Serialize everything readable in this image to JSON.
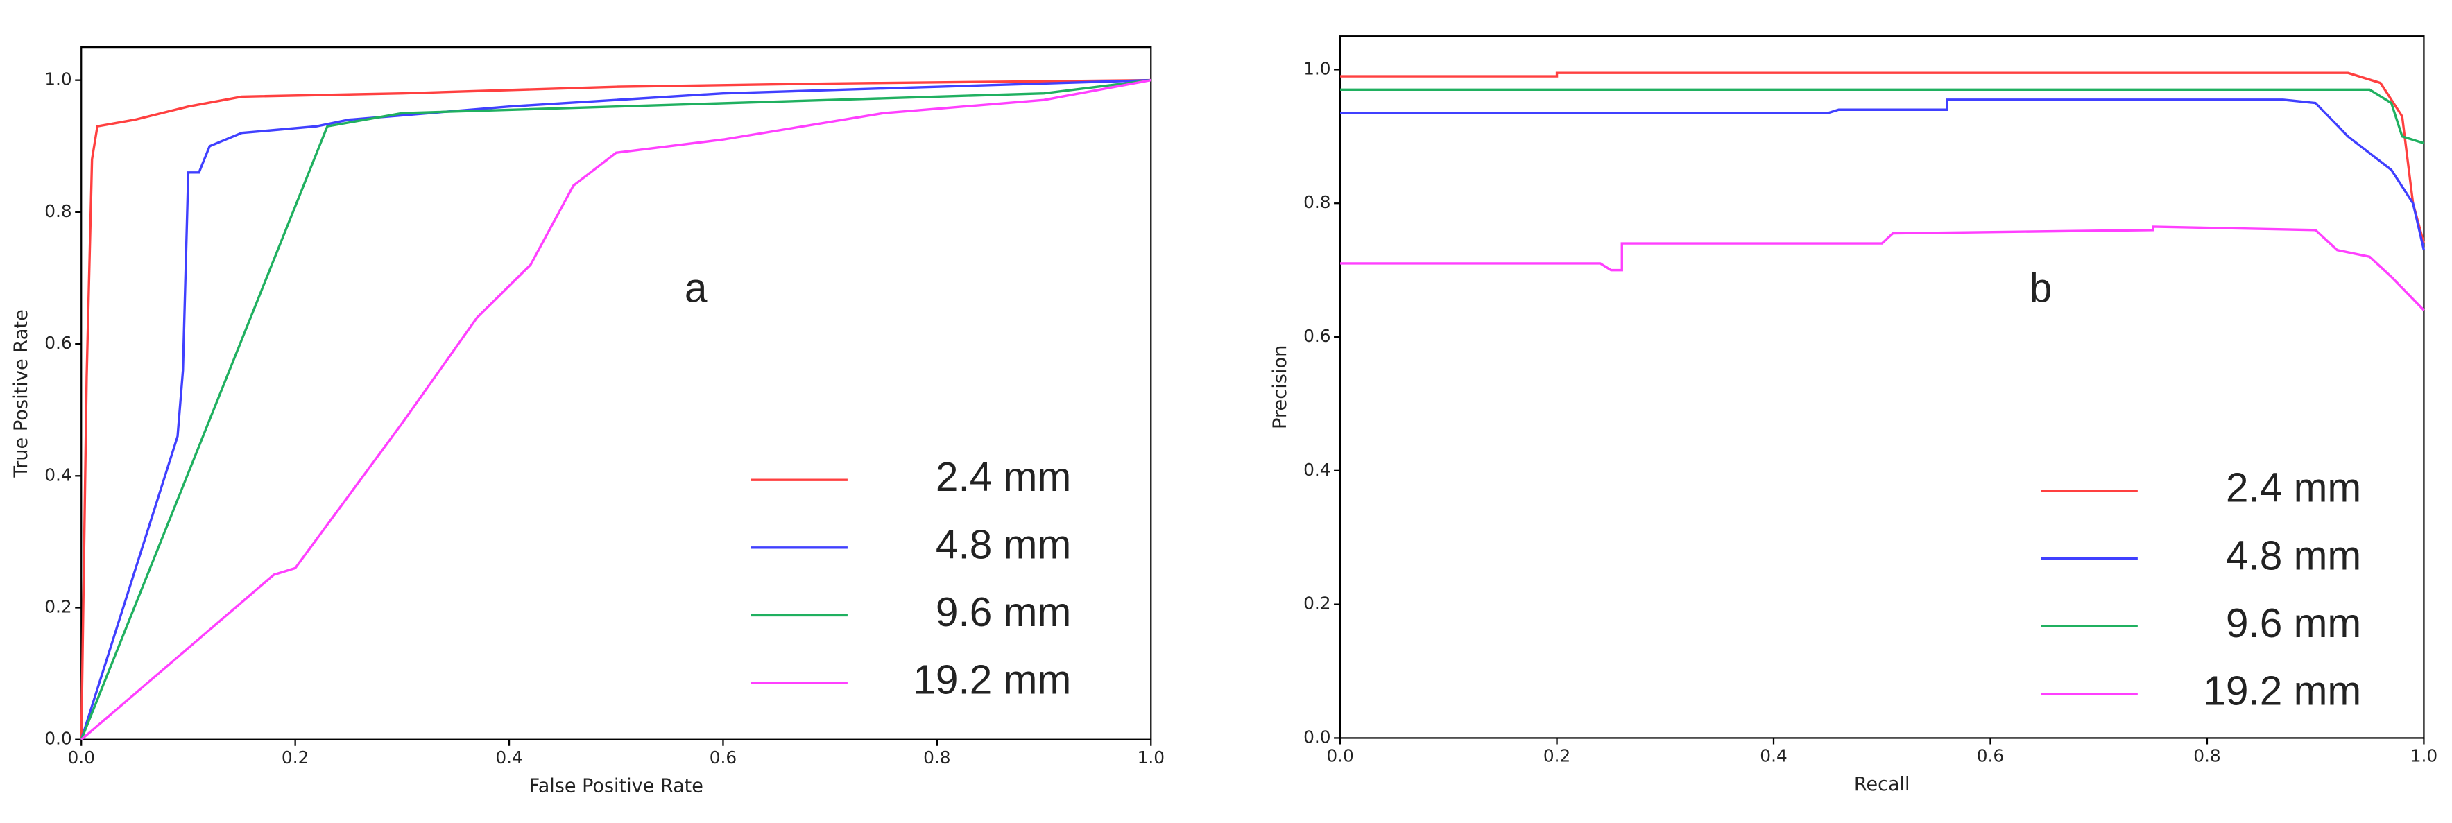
{
  "chart_data": [
    {
      "type": "line",
      "xlabel": "False Positive Rate",
      "ylabel": "True Positive Rate",
      "annotation": "a",
      "xlim": [
        0,
        1
      ],
      "ylim": [
        0,
        1.05
      ],
      "xticks": [
        {
          "value": 0,
          "label": "0.0"
        },
        0.2,
        0.4,
        0.6,
        0.8,
        {
          "value": 1,
          "label": "1.0"
        }
      ],
      "yticks": [
        {
          "value": 0,
          "label": "0.0"
        },
        0.2,
        0.4,
        0.6,
        0.8,
        {
          "value": 1,
          "label": "1.0"
        }
      ],
      "legend": "lower right",
      "series": [
        {
          "name": "2.4 mm",
          "color": "#ff4040",
          "x": [
            0,
            0.005,
            0.01,
            0.015,
            0.05,
            0.1,
            0.15,
            0.3,
            0.5,
            0.7,
            1
          ],
          "values": [
            0,
            0.55,
            0.88,
            0.93,
            0.94,
            0.96,
            0.975,
            0.98,
            0.99,
            0.995,
            1
          ]
        },
        {
          "name": "4.8 mm",
          "color": "#4040ff",
          "x": [
            0,
            0.09,
            0.095,
            0.1,
            0.11,
            0.12,
            0.15,
            0.22,
            0.25,
            0.4,
            0.6,
            0.8,
            1
          ],
          "values": [
            0,
            0.46,
            0.56,
            0.86,
            0.86,
            0.9,
            0.92,
            0.93,
            0.94,
            0.96,
            0.98,
            0.99,
            1
          ]
        },
        {
          "name": "9.6 mm",
          "color": "#20b060",
          "x": [
            0,
            0.23,
            0.3,
            0.5,
            0.7,
            0.9,
            1
          ],
          "values": [
            0,
            0.93,
            0.95,
            0.96,
            0.97,
            0.98,
            1
          ]
        },
        {
          "name": "19.2 mm",
          "color": "#ff40ff",
          "x": [
            0,
            0.18,
            0.2,
            0.3,
            0.37,
            0.42,
            0.46,
            0.5,
            0.6,
            0.75,
            0.9,
            1
          ],
          "values": [
            0,
            0.25,
            0.26,
            0.48,
            0.64,
            0.72,
            0.84,
            0.89,
            0.91,
            0.95,
            0.97,
            1
          ]
        }
      ]
    },
    {
      "type": "line",
      "xlabel": "Recall",
      "ylabel": "Precision",
      "annotation": "b",
      "xlim": [
        0,
        1
      ],
      "ylim": [
        0,
        1.05
      ],
      "xticks": [
        {
          "value": 0,
          "label": "0.0"
        },
        0.2,
        0.4,
        0.6,
        0.8,
        {
          "value": 1,
          "label": "1.0"
        }
      ],
      "yticks": [
        {
          "value": 0,
          "label": "0.0"
        },
        0.2,
        0.4,
        0.6,
        0.8,
        {
          "value": 1,
          "label": "1.0"
        }
      ],
      "legend": "lower right",
      "series": [
        {
          "name": "2.4 mm",
          "color": "#ff4040",
          "x": [
            0,
            0.2,
            0.2,
            0.93,
            0.96,
            0.98,
            0.99,
            1
          ],
          "values": [
            0.99,
            0.99,
            0.995,
            0.995,
            0.98,
            0.93,
            0.8,
            0.74
          ]
        },
        {
          "name": "4.8 mm",
          "color": "#4040ff",
          "x": [
            0,
            0.45,
            0.46,
            0.56,
            0.56,
            0.87,
            0.9,
            0.93,
            0.97,
            0.99,
            1
          ],
          "values": [
            0.935,
            0.935,
            0.94,
            0.94,
            0.955,
            0.955,
            0.95,
            0.9,
            0.85,
            0.8,
            0.73
          ]
        },
        {
          "name": "9.6 mm",
          "color": "#20b060",
          "x": [
            0,
            0.95,
            0.97,
            0.98,
            1
          ],
          "values": [
            0.97,
            0.97,
            0.95,
            0.9,
            0.89
          ]
        },
        {
          "name": "19.2 mm",
          "color": "#ff40ff",
          "x": [
            0,
            0.24,
            0.25,
            0.26,
            0.26,
            0.5,
            0.51,
            0.75,
            0.75,
            0.9,
            0.92,
            0.95,
            0.97,
            1
          ],
          "values": [
            0.71,
            0.71,
            0.7,
            0.7,
            0.74,
            0.74,
            0.755,
            0.76,
            0.765,
            0.76,
            0.73,
            0.72,
            0.69,
            0.64
          ]
        }
      ]
    }
  ]
}
